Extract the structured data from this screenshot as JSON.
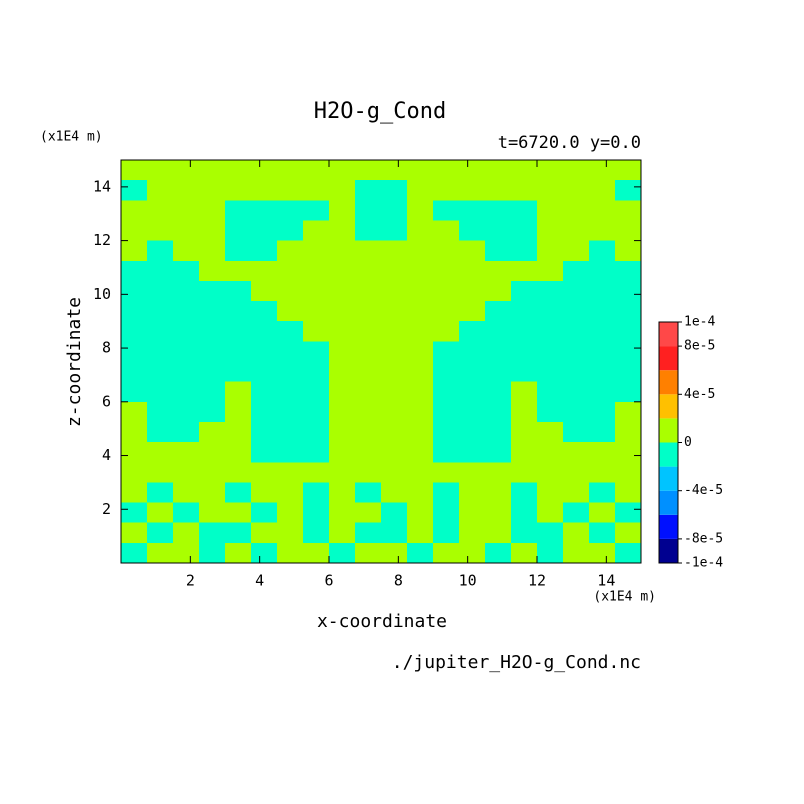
{
  "chart_data": {
    "type": "contour",
    "title": "H2O-g_Cond",
    "subtitle": "t=6720.0 y=0.0",
    "y_unit": "(x1E4 m)",
    "x_unit": "(x1E4 m)",
    "xlabel": "x-coordinate",
    "ylabel": "z-coordinate",
    "source": "./jupiter_H2O-g_Cond.nc",
    "xlim": [
      0,
      15
    ],
    "ylim": [
      0,
      15
    ],
    "xticks": [
      2,
      4,
      6,
      8,
      10,
      12,
      14
    ],
    "yticks": [
      2,
      4,
      6,
      8,
      10,
      12,
      14
    ],
    "x": [
      0.375,
      1.125,
      1.875,
      2.625,
      3.375,
      4.125,
      4.875,
      5.625,
      6.375,
      7.125,
      7.875,
      8.625,
      9.375,
      10.125,
      10.875,
      11.625,
      12.375,
      13.125,
      13.875,
      14.625
    ],
    "y": [
      14.625,
      13.875,
      13.125,
      12.375,
      11.625,
      10.875,
      10.125,
      9.375,
      8.625,
      7.875,
      7.125,
      6.375,
      5.625,
      4.875,
      4.125,
      3.375,
      2.625,
      1.875,
      1.125,
      0.375
    ],
    "z": [
      [
        1e-05,
        1e-05,
        1e-05,
        1e-05,
        1e-05,
        1e-05,
        1e-05,
        1e-05,
        1e-05,
        1e-05,
        1e-05,
        1e-05,
        1e-05,
        1e-05,
        1e-05,
        1e-05,
        1e-05,
        1e-05,
        1e-05,
        1e-05
      ],
      [
        -1e-05,
        1e-05,
        1e-05,
        1e-05,
        1e-05,
        1e-05,
        1e-05,
        1e-05,
        1e-05,
        -1e-05,
        -1e-05,
        1e-05,
        1e-05,
        1e-05,
        1e-05,
        1e-05,
        1e-05,
        1e-05,
        1e-05,
        -1e-05
      ],
      [
        1e-05,
        1e-05,
        1e-05,
        1e-05,
        -1e-05,
        -1e-05,
        -1e-05,
        -1e-05,
        1e-05,
        -1e-05,
        -1e-05,
        1e-05,
        -1e-05,
        -1e-05,
        -1e-05,
        -1e-05,
        1e-05,
        1e-05,
        1e-05,
        1e-05
      ],
      [
        1e-05,
        1e-05,
        1e-05,
        1e-05,
        -1e-05,
        -1e-05,
        -1e-05,
        1e-05,
        1e-05,
        -1e-05,
        -1e-05,
        1e-05,
        1e-05,
        -1e-05,
        -1e-05,
        -1e-05,
        1e-05,
        1e-05,
        1e-05,
        1e-05
      ],
      [
        1e-05,
        -1e-05,
        1e-05,
        1e-05,
        -1e-05,
        -1e-05,
        1e-05,
        1e-05,
        1e-05,
        1e-05,
        1e-05,
        1e-05,
        1e-05,
        1e-05,
        -1e-05,
        -1e-05,
        1e-05,
        1e-05,
        -1e-05,
        1e-05
      ],
      [
        -1e-05,
        -1e-05,
        -1e-05,
        1e-05,
        1e-05,
        1e-05,
        1e-05,
        1e-05,
        1e-05,
        1e-05,
        1e-05,
        1e-05,
        1e-05,
        1e-05,
        1e-05,
        1e-05,
        1e-05,
        -1e-05,
        -1e-05,
        -1e-05
      ],
      [
        -1e-05,
        -1e-05,
        -1e-05,
        -1e-05,
        -1e-05,
        1e-05,
        1e-05,
        1e-05,
        1e-05,
        1e-05,
        1e-05,
        1e-05,
        1e-05,
        1e-05,
        1e-05,
        -1e-05,
        -1e-05,
        -1e-05,
        -1e-05,
        -1e-05
      ],
      [
        -1e-05,
        -1e-05,
        -1e-05,
        -1e-05,
        -1e-05,
        -1e-05,
        1e-05,
        1e-05,
        1e-05,
        1e-05,
        1e-05,
        1e-05,
        1e-05,
        1e-05,
        -1e-05,
        -1e-05,
        -1e-05,
        -1e-05,
        -1e-05,
        -1e-05
      ],
      [
        -1e-05,
        -1e-05,
        -1e-05,
        -1e-05,
        -1e-05,
        -1e-05,
        -1e-05,
        1e-05,
        1e-05,
        1e-05,
        1e-05,
        1e-05,
        1e-05,
        -1e-05,
        -1e-05,
        -1e-05,
        -1e-05,
        -1e-05,
        -1e-05,
        -1e-05
      ],
      [
        -1e-05,
        -1e-05,
        -1e-05,
        -1e-05,
        -1e-05,
        -1e-05,
        -1e-05,
        -1e-05,
        1e-05,
        1e-05,
        1e-05,
        1e-05,
        -1e-05,
        -1e-05,
        -1e-05,
        -1e-05,
        -1e-05,
        -1e-05,
        -1e-05,
        -1e-05
      ],
      [
        -1e-05,
        -1e-05,
        -1e-05,
        -1e-05,
        -1e-05,
        -1e-05,
        -1e-05,
        -1e-05,
        1e-05,
        1e-05,
        1e-05,
        1e-05,
        -1e-05,
        -1e-05,
        -1e-05,
        -1e-05,
        -1e-05,
        -1e-05,
        -1e-05,
        -1e-05
      ],
      [
        -1e-05,
        -1e-05,
        -1e-05,
        -1e-05,
        1e-05,
        -1e-05,
        -1e-05,
        -1e-05,
        1e-05,
        1e-05,
        1e-05,
        1e-05,
        -1e-05,
        -1e-05,
        -1e-05,
        1e-05,
        -1e-05,
        -1e-05,
        -1e-05,
        -1e-05
      ],
      [
        1e-05,
        -1e-05,
        -1e-05,
        -1e-05,
        1e-05,
        -1e-05,
        -1e-05,
        -1e-05,
        1e-05,
        1e-05,
        1e-05,
        1e-05,
        -1e-05,
        -1e-05,
        -1e-05,
        1e-05,
        -1e-05,
        -1e-05,
        -1e-05,
        1e-05
      ],
      [
        1e-05,
        -1e-05,
        -1e-05,
        1e-05,
        1e-05,
        -1e-05,
        -1e-05,
        -1e-05,
        1e-05,
        1e-05,
        1e-05,
        1e-05,
        -1e-05,
        -1e-05,
        -1e-05,
        1e-05,
        1e-05,
        -1e-05,
        -1e-05,
        1e-05
      ],
      [
        1e-05,
        1e-05,
        1e-05,
        1e-05,
        1e-05,
        -1e-05,
        -1e-05,
        -1e-05,
        1e-05,
        1e-05,
        1e-05,
        1e-05,
        -1e-05,
        -1e-05,
        -1e-05,
        1e-05,
        1e-05,
        1e-05,
        1e-05,
        1e-05
      ],
      [
        1e-05,
        1e-05,
        1e-05,
        1e-05,
        1e-05,
        1e-05,
        1e-05,
        1e-05,
        1e-05,
        1e-05,
        1e-05,
        1e-05,
        1e-05,
        1e-05,
        1e-05,
        1e-05,
        1e-05,
        1e-05,
        1e-05,
        1e-05
      ],
      [
        1e-05,
        -1e-05,
        1e-05,
        1e-05,
        -1e-05,
        1e-05,
        1e-05,
        -1e-05,
        1e-05,
        -1e-05,
        1e-05,
        1e-05,
        -1e-05,
        1e-05,
        1e-05,
        -1e-05,
        1e-05,
        1e-05,
        -1e-05,
        1e-05
      ],
      [
        -1e-05,
        1e-05,
        -1e-05,
        1e-05,
        1e-05,
        -1e-05,
        1e-05,
        -1e-05,
        1e-05,
        1e-05,
        -1e-05,
        1e-05,
        -1e-05,
        1e-05,
        1e-05,
        -1e-05,
        1e-05,
        -1e-05,
        1e-05,
        -1e-05
      ],
      [
        1e-05,
        -1e-05,
        1e-05,
        -1e-05,
        -1e-05,
        1e-05,
        1e-05,
        -1e-05,
        1e-05,
        -1e-05,
        -1e-05,
        1e-05,
        -1e-05,
        1e-05,
        1e-05,
        -1e-05,
        -1e-05,
        1e-05,
        -1e-05,
        1e-05
      ],
      [
        -1e-05,
        1e-05,
        1e-05,
        -1e-05,
        1e-05,
        -1e-05,
        1e-05,
        1e-05,
        -1e-05,
        1e-05,
        1e-05,
        -1e-05,
        1e-05,
        1e-05,
        -1e-05,
        1e-05,
        -1e-05,
        1e-05,
        1e-05,
        -1e-05
      ]
    ],
    "levels": [
      -0.0001,
      -8e-05,
      -6e-05,
      -4e-05,
      -2e-05,
      0,
      2e-05,
      4e-05,
      6e-05,
      8e-05,
      0.0001
    ],
    "colors": [
      "#000090",
      "#0010ff",
      "#0090ff",
      "#00c4ff",
      "#00ffc8",
      "#aaff00",
      "#ffc000",
      "#ff8000",
      "#ff2020",
      "#ff4848"
    ],
    "colorbar_ticks": [
      {
        "value": 0.0001,
        "label": "1e-4"
      },
      {
        "value": 8e-05,
        "label": "8e-5"
      },
      {
        "value": 4e-05,
        "label": "4e-5"
      },
      0,
      {
        "value": -4e-05,
        "label": "-4e-5"
      },
      {
        "value": -8e-05,
        "label": "-8e-5"
      },
      {
        "value": -0.0001,
        "label": "-1e-4"
      }
    ]
  }
}
